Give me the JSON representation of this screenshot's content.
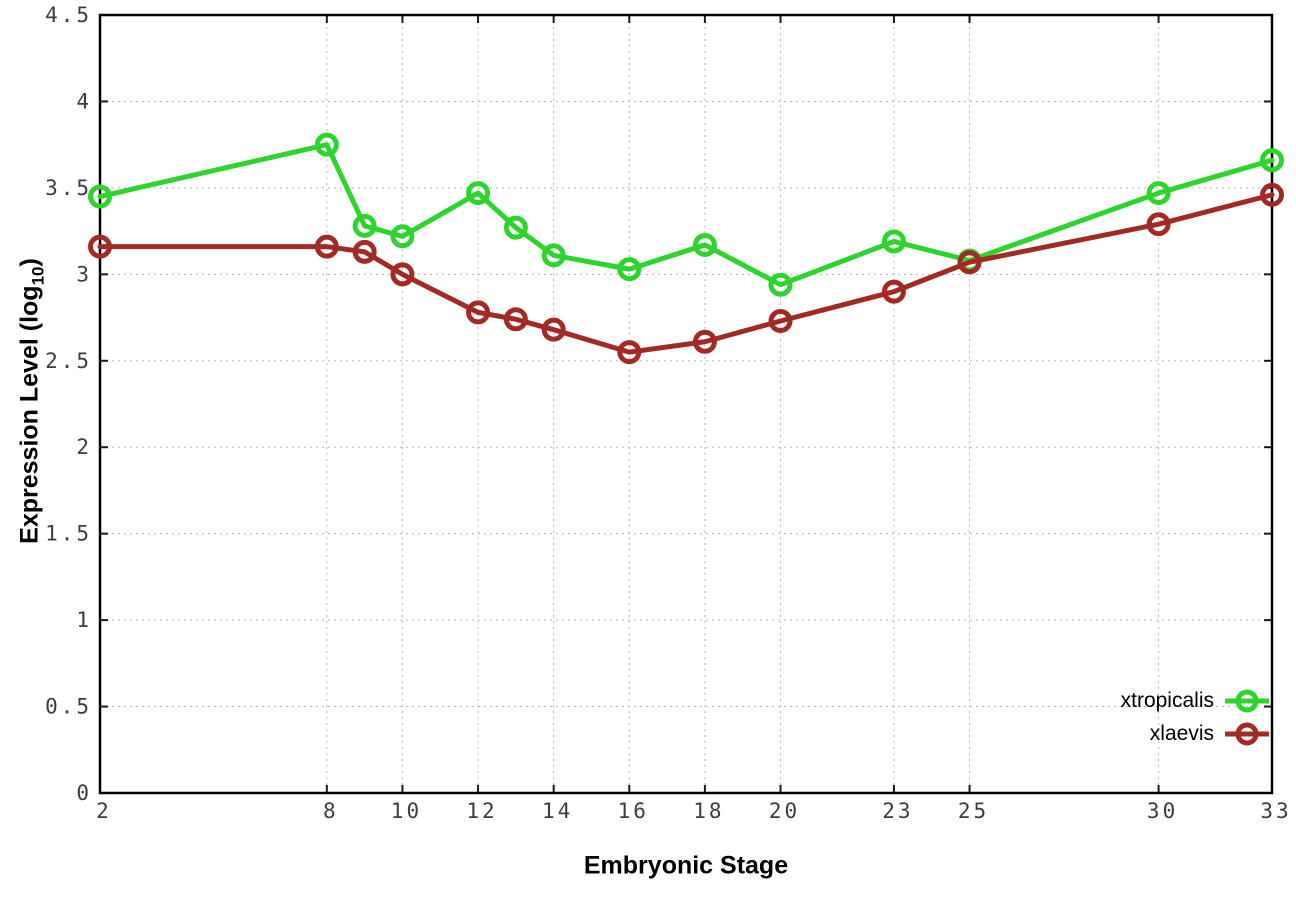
{
  "chart_data": {
    "type": "line",
    "title": "",
    "xlabel": "Embryonic Stage",
    "ylabel": "Expression Level (log10)",
    "ylabel_parts": {
      "prefix": "Expression Level (log",
      "sub": "10",
      "suffix": ")"
    },
    "xlim": [
      2,
      33
    ],
    "ylim": [
      0,
      4.5
    ],
    "grid": true,
    "grid_style": "dotted",
    "legend_position": "inside bottom-right",
    "xticks": [
      2,
      8,
      10,
      12,
      14,
      16,
      18,
      20,
      23,
      25,
      30,
      33
    ],
    "xtick_labels": [
      "2",
      "8",
      "10",
      "12",
      "14",
      "16",
      "18",
      "20",
      "23",
      "25",
      "30",
      "33"
    ],
    "yticks": [
      0,
      0.5,
      1,
      1.5,
      2,
      2.5,
      3,
      3.5,
      4,
      4.5
    ],
    "ytick_labels": [
      "0",
      "0.5",
      "1",
      "1.5",
      "2",
      "2.5",
      "3",
      "3.5",
      "4",
      "4.5"
    ],
    "x": [
      2,
      8,
      9,
      10,
      12,
      13,
      14,
      16,
      18,
      20,
      23,
      25,
      30,
      33
    ],
    "series": [
      {
        "name": "xtropicalis",
        "color": "#2dd42d",
        "marker": "open-circle",
        "values": [
          3.45,
          3.75,
          3.28,
          3.22,
          3.47,
          3.27,
          3.11,
          3.03,
          3.17,
          2.94,
          3.19,
          3.08,
          3.47,
          3.66
        ]
      },
      {
        "name": "xlaevis",
        "color": "#a12b24",
        "marker": "open-circle",
        "values": [
          3.16,
          3.16,
          3.13,
          3.0,
          2.78,
          2.74,
          2.68,
          2.55,
          2.61,
          2.73,
          2.9,
          3.07,
          3.29,
          3.46
        ]
      }
    ]
  },
  "colors": {
    "background": "#ffffff",
    "border": "#000000",
    "grid": "#b8b8b8",
    "tick_label": "#3c3c3c"
  }
}
